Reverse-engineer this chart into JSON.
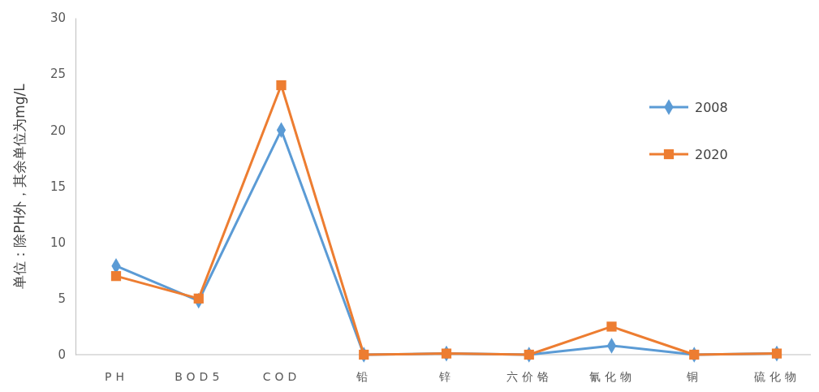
{
  "chart_data": {
    "type": "line",
    "ylabel": "单位：除PH外，其余单位为mg/L",
    "categories": [
      "PH",
      "BOD5",
      "COD",
      "铅",
      "锌",
      "六价铬",
      "氰化物",
      "铜",
      "硫化物"
    ],
    "ylim": [
      0,
      30
    ],
    "yticks": [
      0,
      5,
      10,
      15,
      20,
      25,
      30
    ],
    "grid": false,
    "legend": "right",
    "series": [
      {
        "name": "2008",
        "color": "#5b9bd5",
        "marker": "diamond",
        "values": [
          7.9,
          4.8,
          20,
          0,
          0.1,
          0,
          0.8,
          0,
          0.1
        ]
      },
      {
        "name": "2020",
        "color": "#ed7d31",
        "marker": "square",
        "values": [
          7,
          5,
          24,
          0,
          0.1,
          0,
          2.5,
          0,
          0.1
        ]
      }
    ]
  }
}
